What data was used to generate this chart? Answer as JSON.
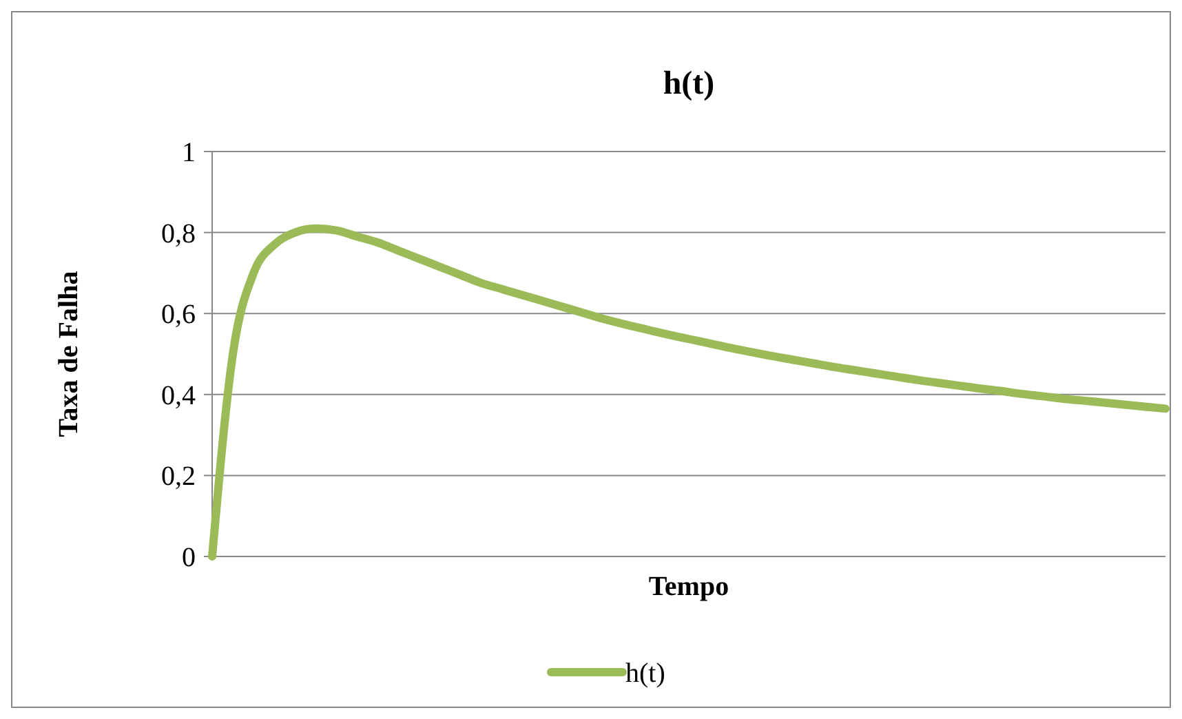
{
  "chart_data": {
    "type": "line",
    "title": "h(t)",
    "xlabel": "Tempo",
    "ylabel": "Taxa de Falha",
    "categories": [
      null,
      null,
      null,
      null,
      null,
      null,
      null,
      null,
      null,
      null,
      null,
      null,
      null,
      null,
      null,
      null,
      null,
      null,
      null,
      null,
      null,
      null,
      null,
      null,
      null,
      null,
      null,
      null,
      null,
      null,
      null,
      null,
      null,
      null,
      null,
      null,
      null,
      null,
      null,
      null,
      null,
      null,
      null,
      null,
      null,
      null,
      null
    ],
    "series": [
      {
        "name": "h(t)",
        "color": "#9bbb59",
        "values": [
          0,
          0.5,
          0.7,
          0.77,
          0.8,
          0.81,
          0.805,
          0.79,
          0.775,
          0.755,
          0.735,
          0.715,
          0.695,
          0.675,
          0.66,
          0.645,
          0.63,
          0.615,
          0.6,
          0.585,
          0.572,
          0.56,
          0.548,
          0.537,
          0.526,
          0.515,
          0.505,
          0.495,
          0.486,
          0.477,
          0.468,
          0.46,
          0.452,
          0.444,
          0.436,
          0.429,
          0.422,
          0.415,
          0.409,
          0.402,
          0.396,
          0.39,
          0.385,
          0.38,
          0.375,
          0.37,
          0.365
        ]
      }
    ],
    "ylim": [
      0,
      1
    ],
    "yticks": [
      0,
      {
        "value": 0.2,
        "label": "0,2"
      },
      {
        "value": 0.4,
        "label": "0,4"
      },
      {
        "value": 0.6,
        "label": "0,6"
      },
      {
        "value": 0.8,
        "label": "0,8"
      },
      1
    ],
    "grid": "y",
    "legend": "bottom",
    "line_style": "solid",
    "tick_labels": "y"
  }
}
